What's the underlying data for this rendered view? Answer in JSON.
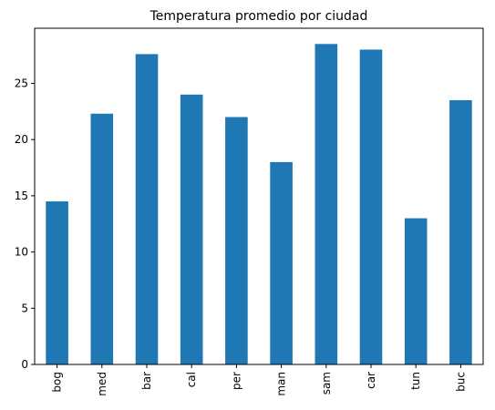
{
  "chart_data": {
    "type": "bar",
    "title": "Temperatura promedio por ciudad",
    "xlabel": "",
    "ylabel": "",
    "categories": [
      "bog",
      "med",
      "bar",
      "cal",
      "per",
      "man",
      "sam",
      "car",
      "tun",
      "buc"
    ],
    "values": [
      14.5,
      22.3,
      27.6,
      24.0,
      22.0,
      18.0,
      28.5,
      28.0,
      13.0,
      23.5
    ],
    "ylim": [
      0,
      29.9
    ],
    "yticks": [
      0,
      5,
      10,
      15,
      20,
      25
    ],
    "grid": false,
    "legend": "none",
    "bar_color": "#1f77b4"
  }
}
